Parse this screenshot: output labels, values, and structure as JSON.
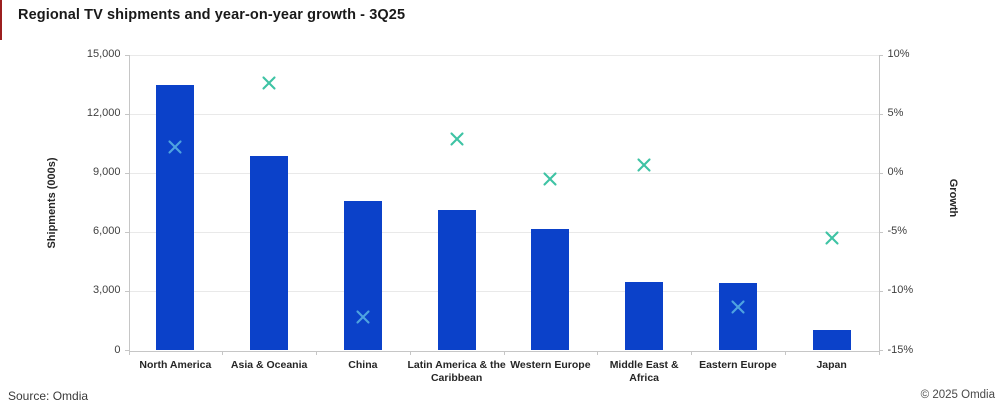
{
  "title": "Regional TV shipments and year-on-year growth - 3Q25",
  "footer": {
    "source": "Source: Omdia",
    "copyright": "© 2025 Omdia"
  },
  "colors": {
    "bar": "#0b41c9",
    "marker": "#3ec3a4",
    "marker_on_bar": "#4fa3e0",
    "accent_red": "#9c1f1f"
  },
  "chart_data": {
    "type": "combo-bar-scatter",
    "title": "Regional TV shipments and year-on-year growth - 3Q25",
    "categories": [
      "North America",
      "Asia & Oceania",
      "China",
      "Latin America & the\nCaribbean",
      "Western Europe",
      "Middle East &\nAfrica",
      "Eastern Europe",
      "Japan"
    ],
    "series": [
      {
        "name": "Shipments (000s)",
        "type": "bar",
        "axis": "left",
        "values": [
          13500,
          9850,
          7600,
          7150,
          6150,
          3500,
          3450,
          1050
        ]
      },
      {
        "name": "Growth",
        "type": "scatter",
        "marker": "x",
        "axis": "right",
        "values_pct": [
          2.2,
          7.6,
          -12.2,
          2.9,
          -0.5,
          0.7,
          -11.3,
          -5.5
        ]
      }
    ],
    "ylabel_left": "Shipments (000s)",
    "ylabel_right": "Growth",
    "ylim_left": [
      0,
      15000
    ],
    "ylim_right": [
      -15,
      10
    ],
    "yticks_left_labels": [
      "15,000",
      "12,000",
      "9,000",
      "6,000",
      "3,000",
      "0"
    ],
    "yticks_left_values": [
      15000,
      12000,
      9000,
      6000,
      3000,
      0
    ],
    "yticks_right_labels": [
      "10%",
      "5%",
      "0%",
      "-5%",
      "-10%",
      "-15%"
    ],
    "yticks_right_values": [
      10,
      5,
      0,
      -5,
      -10,
      -15
    ],
    "grid": true,
    "legend": "none"
  }
}
